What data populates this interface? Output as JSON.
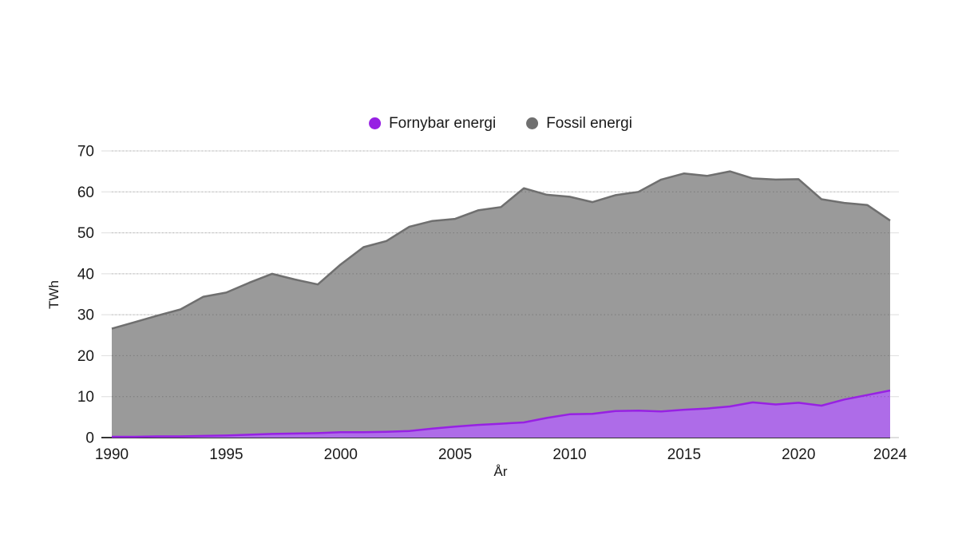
{
  "page": {
    "background": "#ffffff"
  },
  "legend": {
    "items": [
      {
        "label": "Fornybar energi",
        "color": "#9721E3"
      },
      {
        "label": "Fossil energi",
        "color": "#6F6F6F"
      }
    ]
  },
  "axes": {
    "y_title": "TWh",
    "x_title": "År"
  },
  "colors": {
    "grid": "#DEDEDE",
    "grid_overlay": "rgba(0,0,0,0.2)",
    "axis_zero_line": "#333333",
    "text": "#1a1a1a",
    "background": "#ffffff"
  },
  "chart_data": {
    "type": "area",
    "stacked": true,
    "title": "",
    "xlabel": "År",
    "ylabel": "TWh",
    "grid": true,
    "legend_position": "top-center",
    "xlim": [
      1990,
      2024
    ],
    "ylim": [
      0,
      70
    ],
    "xticks": [
      1990,
      1995,
      2000,
      2005,
      2010,
      2015,
      2020,
      2024
    ],
    "yticks": [
      0,
      10,
      20,
      30,
      40,
      50,
      60,
      70
    ],
    "x": [
      1990,
      1991,
      1992,
      1993,
      1994,
      1995,
      1996,
      1997,
      1998,
      1999,
      2000,
      2001,
      2002,
      2003,
      2004,
      2005,
      2006,
      2007,
      2008,
      2009,
      2010,
      2011,
      2012,
      2013,
      2014,
      2015,
      2016,
      2017,
      2018,
      2019,
      2020,
      2021,
      2022,
      2023,
      2024
    ],
    "series": [
      {
        "name": "Fornybar energi",
        "line_color": "#9721E3",
        "fill_color": "#AE6CE8",
        "values": [
          0.2,
          0.2,
          0.3,
          0.3,
          0.4,
          0.5,
          0.7,
          0.9,
          1.0,
          1.1,
          1.3,
          1.3,
          1.4,
          1.6,
          2.2,
          2.7,
          3.1,
          3.4,
          3.7,
          4.8,
          5.7,
          5.8,
          6.5,
          6.6,
          6.4,
          6.8,
          7.1,
          7.6,
          8.6,
          8.1,
          8.5,
          7.8,
          9.3,
          10.4,
          11.5
        ]
      },
      {
        "name": "Fossil energi",
        "line_color": "#6F6F6F",
        "fill_color": "#9A9A9A",
        "values": [
          26.4,
          28.0,
          29.5,
          31.0,
          34.0,
          34.9,
          37.1,
          39.1,
          37.6,
          36.3,
          41.0,
          45.2,
          46.6,
          49.9,
          50.7,
          50.7,
          52.4,
          52.9,
          57.2,
          54.5,
          53.1,
          51.7,
          52.7,
          53.4,
          56.6,
          57.7,
          56.8,
          57.4,
          54.7,
          54.9,
          54.6,
          50.4,
          48.0,
          46.4,
          41.5
        ]
      }
    ]
  }
}
